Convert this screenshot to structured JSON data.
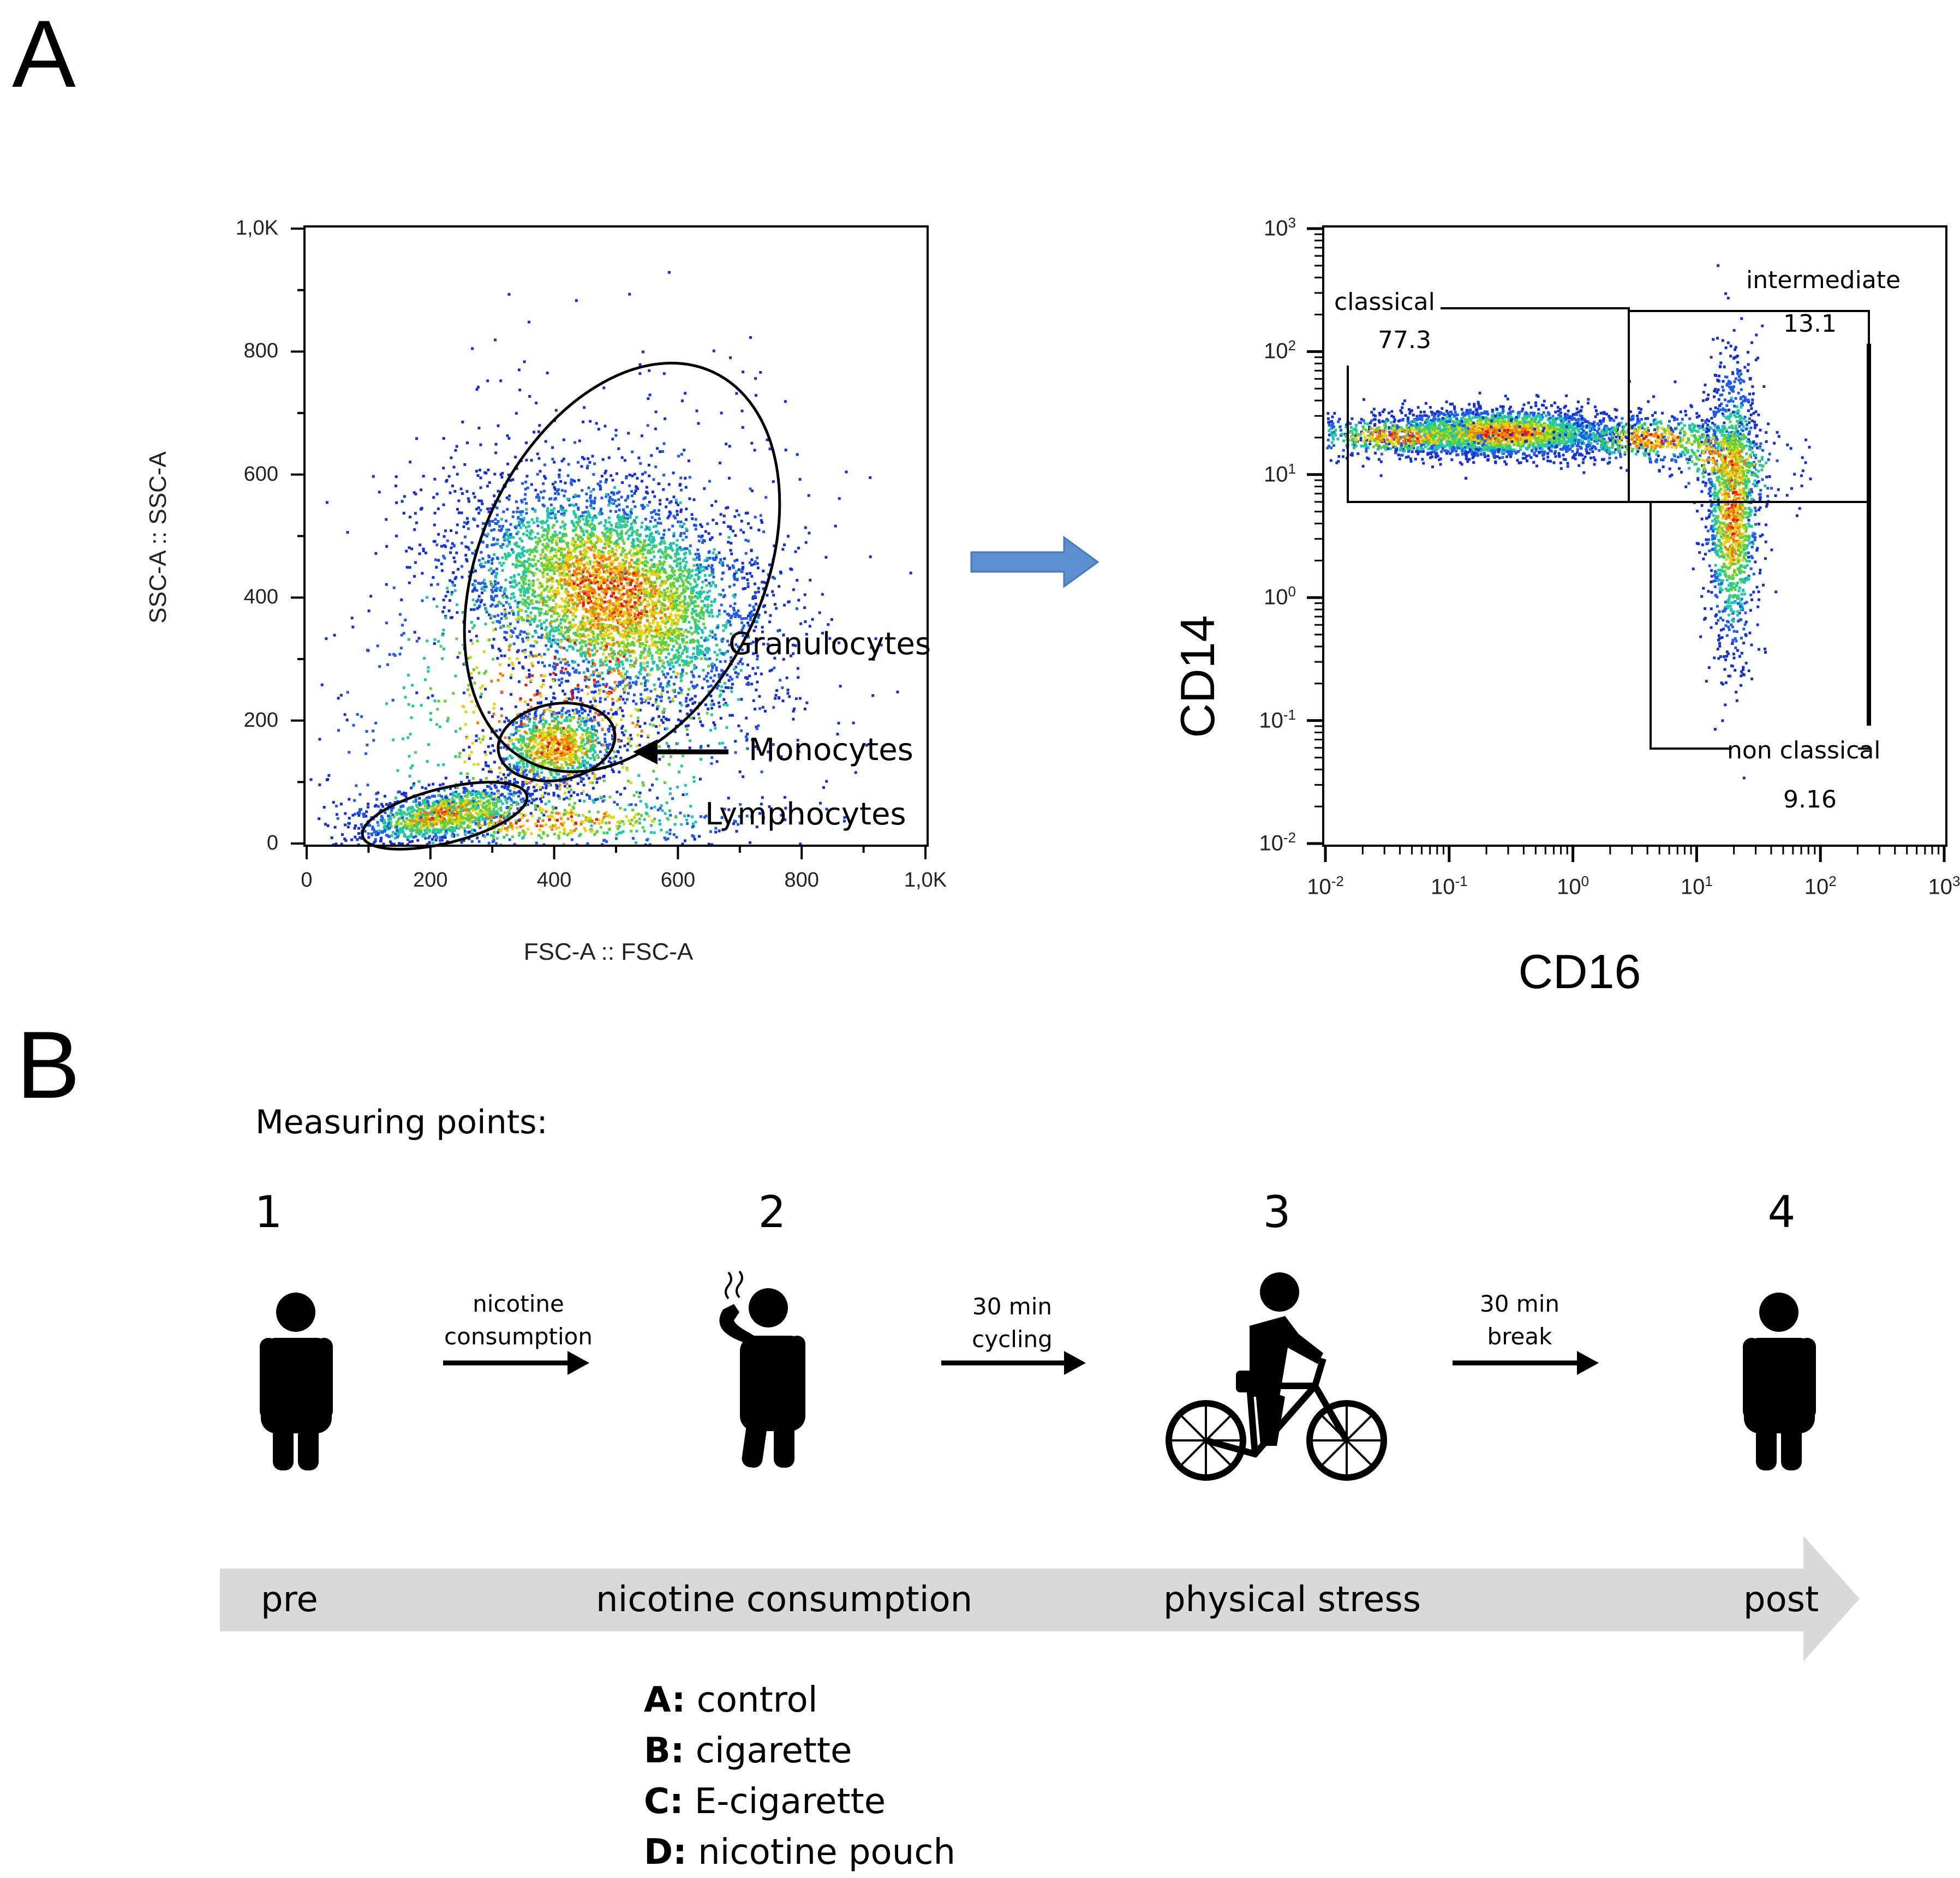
{
  "panels": {
    "a_letter": "A",
    "b_letter": "B"
  },
  "colors": {
    "arrow_blue": "#5b8fd0",
    "timeline_gray": "#d9d9d9"
  },
  "scatter": {
    "xlabel": "FSC-A :: FSC-A",
    "ylabel": "SSC-A :: SSC-A",
    "xticks": [
      "0",
      "200",
      "400",
      "600",
      "800",
      "1,0K"
    ],
    "yticks": [
      "0",
      "200",
      "400",
      "600",
      "800",
      "1,0K"
    ],
    "gates": {
      "granulocytes": "Granulocytes",
      "monocytes": "Monocytes",
      "lymphocytes": "Lymphocytes"
    }
  },
  "chart_data": [
    {
      "type": "scatter",
      "xlabel": "FSC-A :: FSC-A",
      "ylabel": "SSC-A :: SSC-A",
      "xlim": [
        0,
        1000
      ],
      "ylim": [
        0,
        1000
      ],
      "populations": [
        {
          "name": "Granulocytes",
          "center": [
            490,
            410
          ],
          "radius": [
            150,
            230
          ]
        },
        {
          "name": "Monocytes",
          "center": [
            400,
            160
          ],
          "radius": [
            90,
            60
          ]
        },
        {
          "name": "Lymphocytes",
          "center": [
            220,
            50
          ],
          "radius": [
            130,
            35
          ]
        }
      ]
    },
    {
      "type": "scatter",
      "xlabel": "CD16",
      "ylabel": "CD14",
      "scale": "log",
      "xlim": [
        -2,
        3
      ],
      "ylim": [
        -2,
        3
      ],
      "quadrants": [
        {
          "name": "classical",
          "value": "77.3"
        },
        {
          "name": "intermediate",
          "value": "13.1"
        },
        {
          "name": "non classical",
          "value": "9.16"
        }
      ]
    }
  ],
  "flow": {
    "xlabel": "CD16",
    "ylabel": "CD14",
    "tick_base": "10",
    "ticks_x": [
      "-2",
      "-1",
      "0",
      "1",
      "2",
      "3"
    ],
    "ticks_y": [
      "3",
      "2",
      "1",
      "0",
      "-1",
      "-2"
    ],
    "gates": {
      "classical": {
        "name": "classical",
        "value": "77.3"
      },
      "intermediate": {
        "name": "intermediate",
        "value": "13.1"
      },
      "nonclassical": {
        "name": "non classical",
        "value": "9.16"
      }
    }
  },
  "protocol": {
    "heading": "Measuring points:",
    "steps": [
      "1",
      "2",
      "3",
      "4"
    ],
    "transitions": [
      {
        "line1": "nicotine",
        "line2": "consumption"
      },
      {
        "line1": "30 min",
        "line2": "cycling"
      },
      {
        "line1": "30 min",
        "line2": "break"
      }
    ],
    "phases": [
      "pre",
      "nicotine consumption",
      "physical stress",
      "post"
    ],
    "conditions": [
      {
        "key": "A",
        "sep": ":",
        "label": " control"
      },
      {
        "key": "B",
        "sep": ":",
        "label": " cigarette"
      },
      {
        "key": "C",
        "sep": ":",
        "label": " E-cigarette"
      },
      {
        "key": "D",
        "sep": ":",
        "label": " nicotine pouch"
      }
    ]
  }
}
